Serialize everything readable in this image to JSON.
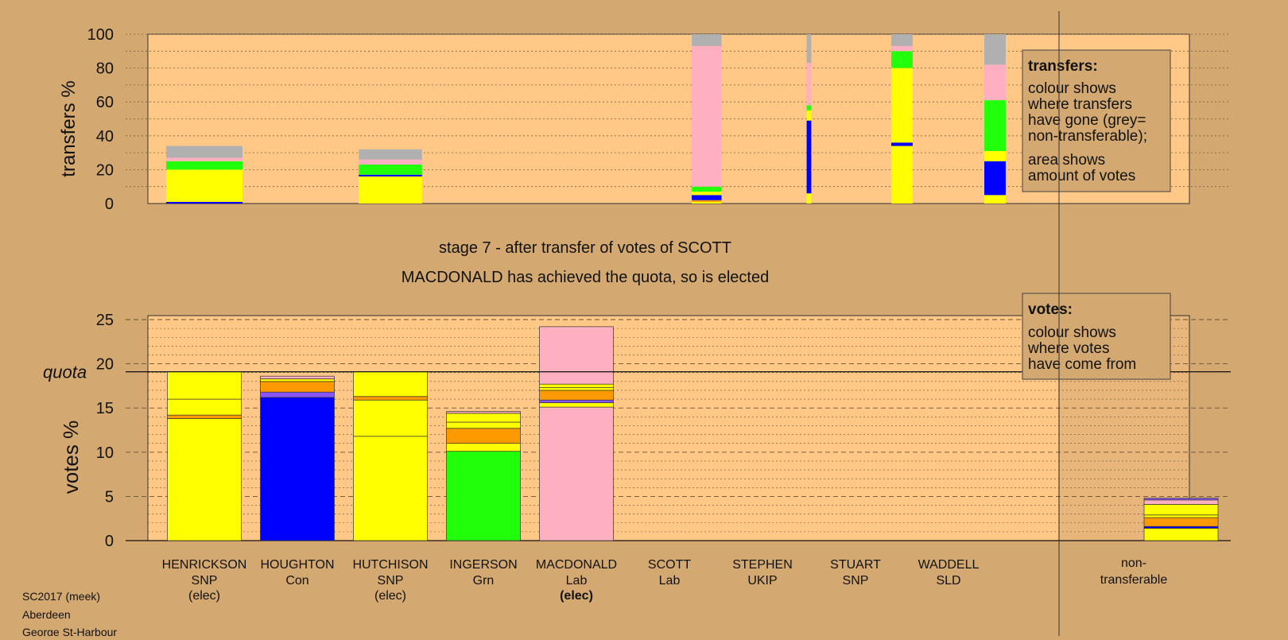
{
  "stage_title": "stage 7 - after transfer of votes of SCOTT",
  "stage_subtitle": "MACDONALD has achieved the quota, so is elected",
  "footer": [
    "SC2017 (meek)",
    "Aberdeen",
    "George St-Harbour"
  ],
  "legend_transfers": {
    "heading": "transfers:",
    "lines_a": [
      "colour shows",
      "where transfers",
      "have gone (grey=",
      "non-transferable);"
    ],
    "lines_b": [
      "area shows",
      "amount of votes"
    ]
  },
  "legend_votes": {
    "heading": "votes:",
    "lines": [
      "colour shows",
      "where votes",
      "have come from"
    ]
  },
  "party_colors": {
    "SNP": "#ffff00",
    "Con": "#0000ff",
    "Grn": "#22ff0a",
    "Lab": "#ffb0c0",
    "UKIP": "#ff9900",
    "SLD": "#ff9900",
    "nontransferable": "#b0b0b0",
    "other": "#8855ff"
  },
  "chart_data": [
    {
      "type": "bar",
      "ylabel": "transfers %",
      "ylim": [
        0,
        100
      ],
      "yticks": [
        0,
        20,
        40,
        60,
        80,
        100
      ],
      "grid": "dotted",
      "bars": [
        {
          "pos": 0,
          "width": 0.82,
          "segments": [
            {
              "from": 0,
              "to": 1,
              "color": "#0000ff"
            },
            {
              "from": 1,
              "to": 20,
              "color": "#ffff00"
            },
            {
              "from": 20,
              "to": 25,
              "color": "#22ff0a"
            },
            {
              "from": 25,
              "to": 27,
              "color": "#ffb0c0"
            },
            {
              "from": 27,
              "to": 34,
              "color": "#b0b0b0"
            }
          ]
        },
        {
          "pos": 2,
          "width": 0.68,
          "segments": [
            {
              "from": 0,
              "to": 16,
              "color": "#ffff00"
            },
            {
              "from": 16,
              "to": 17,
              "color": "#0000ff"
            },
            {
              "from": 17,
              "to": 23,
              "color": "#22ff0a"
            },
            {
              "from": 23,
              "to": 26,
              "color": "#ffb0c0"
            },
            {
              "from": 26,
              "to": 32,
              "color": "#b0b0b0"
            }
          ]
        },
        {
          "pos": 5.4,
          "width": 0.32,
          "segments": [
            {
              "from": 0,
              "to": 1,
              "color": "#ffff00"
            },
            {
              "from": 1,
              "to": 2,
              "color": "#ff9900"
            },
            {
              "from": 2,
              "to": 5,
              "color": "#0000ff"
            },
            {
              "from": 5,
              "to": 7,
              "color": "#ffff00"
            },
            {
              "from": 7,
              "to": 10,
              "color": "#22ff0a"
            },
            {
              "from": 10,
              "to": 93,
              "color": "#ffb0c0"
            },
            {
              "from": 93,
              "to": 100,
              "color": "#b0b0b0"
            }
          ]
        },
        {
          "pos": 6.5,
          "width": 0.05,
          "segments": [
            {
              "from": 0,
              "to": 6,
              "color": "#ffff00"
            },
            {
              "from": 6,
              "to": 49,
              "color": "#0000ff"
            },
            {
              "from": 49,
              "to": 55,
              "color": "#ffff00"
            },
            {
              "from": 55,
              "to": 58,
              "color": "#22ff0a"
            },
            {
              "from": 58,
              "to": 83,
              "color": "#ffb0c0"
            },
            {
              "from": 83,
              "to": 100,
              "color": "#b0b0b0"
            }
          ]
        },
        {
          "pos": 7.5,
          "width": 0.23,
          "segments": [
            {
              "from": 0,
              "to": 34,
              "color": "#ffff00"
            },
            {
              "from": 34,
              "to": 36,
              "color": "#0000ff"
            },
            {
              "from": 36,
              "to": 80,
              "color": "#ffff00"
            },
            {
              "from": 80,
              "to": 90,
              "color": "#22ff0a"
            },
            {
              "from": 90,
              "to": 93,
              "color": "#ffb0c0"
            },
            {
              "from": 93,
              "to": 100,
              "color": "#b0b0b0"
            }
          ]
        },
        {
          "pos": 8.5,
          "width": 0.23,
          "segments": [
            {
              "from": 0,
              "to": 5,
              "color": "#ffff00"
            },
            {
              "from": 5,
              "to": 25,
              "color": "#0000ff"
            },
            {
              "from": 25,
              "to": 31,
              "color": "#ffff00"
            },
            {
              "from": 31,
              "to": 61,
              "color": "#22ff0a"
            },
            {
              "from": 61,
              "to": 82,
              "color": "#ffb0c0"
            },
            {
              "from": 82,
              "to": 100,
              "color": "#b0b0b0"
            }
          ]
        }
      ]
    },
    {
      "type": "bar",
      "ylabel": "votes %",
      "ylim": [
        0,
        25
      ],
      "yticks": [
        0,
        5,
        10,
        15,
        20,
        25
      ],
      "quota": 19.1,
      "quota_label": "quota",
      "categories": [
        {
          "name": "HENRICKSON",
          "party": "SNP",
          "status": "(elec)",
          "bold": false
        },
        {
          "name": "HOUGHTON",
          "party": "Con",
          "status": "",
          "bold": false
        },
        {
          "name": "HUTCHISON",
          "party": "SNP",
          "status": "(elec)",
          "bold": false
        },
        {
          "name": "INGERSON",
          "party": "Grn",
          "status": "",
          "bold": false
        },
        {
          "name": "MACDONALD",
          "party": "Lab",
          "status": "(elec)",
          "bold": true
        },
        {
          "name": "SCOTT",
          "party": "Lab",
          "status": "",
          "bold": false
        },
        {
          "name": "STEPHEN",
          "party": "UKIP",
          "status": "",
          "bold": false
        },
        {
          "name": "STUART",
          "party": "SNP",
          "status": "",
          "bold": false
        },
        {
          "name": "WADDELL",
          "party": "SLD",
          "status": "",
          "bold": false
        }
      ],
      "nontransferable_label": [
        "non-",
        "transferable"
      ],
      "bars": [
        {
          "pos": 0,
          "segments": [
            {
              "from": 0,
              "to": 13.8,
              "color": "#ffff00"
            },
            {
              "from": 13.8,
              "to": 14.2,
              "color": "#ff9900"
            },
            {
              "from": 14.2,
              "to": 16.0,
              "color": "#ffff00"
            },
            {
              "from": 16.0,
              "to": 19.1,
              "color": "#ffff00"
            }
          ]
        },
        {
          "pos": 1,
          "segments": [
            {
              "from": 0,
              "to": 16.2,
              "color": "#0000ff"
            },
            {
              "from": 16.2,
              "to": 16.8,
              "color": "#8855ff"
            },
            {
              "from": 16.8,
              "to": 18.0,
              "color": "#ff9900"
            },
            {
              "from": 18.0,
              "to": 18.3,
              "color": "#ffff00"
            },
            {
              "from": 18.3,
              "to": 18.6,
              "color": "#ffb0c0"
            }
          ]
        },
        {
          "pos": 2,
          "segments": [
            {
              "from": 0,
              "to": 11.8,
              "color": "#ffff00"
            },
            {
              "from": 11.8,
              "to": 15.9,
              "color": "#ffff00"
            },
            {
              "from": 15.9,
              "to": 16.3,
              "color": "#ff9900"
            },
            {
              "from": 16.3,
              "to": 19.1,
              "color": "#ffff00"
            }
          ]
        },
        {
          "pos": 3,
          "segments": [
            {
              "from": 0,
              "to": 10.1,
              "color": "#22ff0a"
            },
            {
              "from": 10.1,
              "to": 11.0,
              "color": "#ffff00"
            },
            {
              "from": 11.0,
              "to": 12.7,
              "color": "#ff9900"
            },
            {
              "from": 12.7,
              "to": 13.4,
              "color": "#ffff00"
            },
            {
              "from": 13.4,
              "to": 14.4,
              "color": "#ffff00"
            },
            {
              "from": 14.4,
              "to": 14.6,
              "color": "#ffb0c0"
            }
          ]
        },
        {
          "pos": 4,
          "segments": [
            {
              "from": 0,
              "to": 15.1,
              "color": "#ffb0c0"
            },
            {
              "from": 15.1,
              "to": 15.6,
              "color": "#ffff00"
            },
            {
              "from": 15.6,
              "to": 15.9,
              "color": "#8855ff"
            },
            {
              "from": 15.9,
              "to": 17.0,
              "color": "#ff9900"
            },
            {
              "from": 17.0,
              "to": 17.3,
              "color": "#ffff00"
            },
            {
              "from": 17.3,
              "to": 17.7,
              "color": "#ffff00"
            },
            {
              "from": 17.7,
              "to": 24.2,
              "color": "#ffb0c0"
            }
          ]
        },
        {
          "pos": 10.5,
          "segments": [
            {
              "from": 0,
              "to": 1.4,
              "color": "#ffff00"
            },
            {
              "from": 1.4,
              "to": 1.6,
              "color": "#0000ff"
            },
            {
              "from": 1.6,
              "to": 2.6,
              "color": "#ff9900"
            },
            {
              "from": 2.6,
              "to": 2.9,
              "color": "#ffff00"
            },
            {
              "from": 2.9,
              "to": 4.1,
              "color": "#ffff00"
            },
            {
              "from": 4.1,
              "to": 4.6,
              "color": "#ffb0c0"
            },
            {
              "from": 4.6,
              "to": 4.8,
              "color": "#8855ff"
            }
          ]
        }
      ]
    }
  ]
}
